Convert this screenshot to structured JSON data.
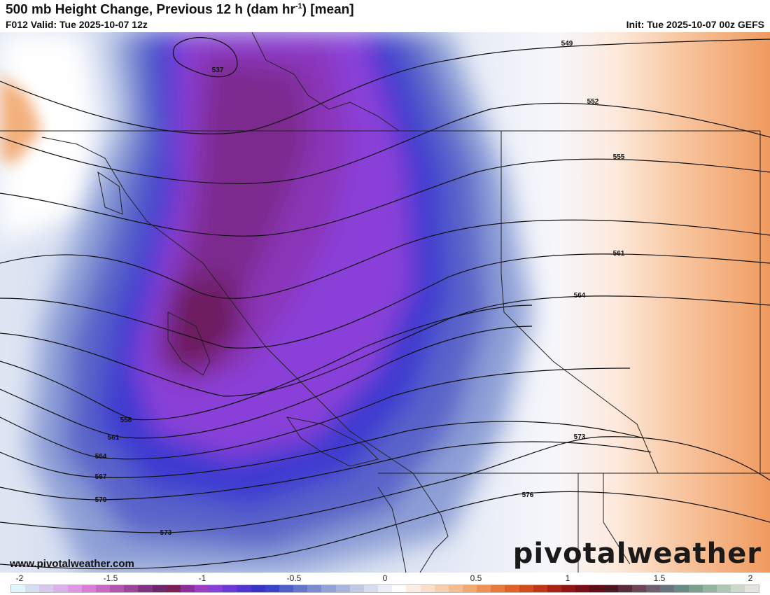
{
  "header": {
    "title": "500 mb Height Change, Previous 12 h (dam hr",
    "title_sup": "-1",
    "title_tail": ") [mean]",
    "valid": "F012 Valid: Tue 2025-10-07 12z",
    "init": "Init: Tue 2025-10-07 00z GEFS"
  },
  "contours": [
    {
      "label": "537"
    },
    {
      "label": "549"
    },
    {
      "label": "552"
    },
    {
      "label": "555"
    },
    {
      "label": "558"
    },
    {
      "label": "561"
    },
    {
      "label": "561"
    },
    {
      "label": "564"
    },
    {
      "label": "564"
    },
    {
      "label": "567"
    },
    {
      "label": "570"
    },
    {
      "label": "573"
    },
    {
      "label": "573"
    },
    {
      "label": "576"
    }
  ],
  "colorbar": {
    "ticks": [
      "-2",
      "-1.5",
      "-1",
      "-0.5",
      "0",
      "0.5",
      "1",
      "1.5",
      "2"
    ],
    "colors": [
      "#dff6fb",
      "#d6ddf3",
      "#d8c8ee",
      "#dbb1ea",
      "#df97e6",
      "#d97dd9",
      "#c969c6",
      "#b156b0",
      "#98459a",
      "#7f3584",
      "#6c276d",
      "#7a1f58",
      "#8e2e9a",
      "#9b3ec4",
      "#8440d8",
      "#6a3ad6",
      "#5035d0",
      "#3a34c6",
      "#3a44c8",
      "#4d5fc6",
      "#6376c9",
      "#7b8bcf",
      "#93a1d7",
      "#aab5df",
      "#c1c9e7",
      "#d7dcef",
      "#eceff7",
      "#ffffff",
      "#fdeee4",
      "#fbdfcb",
      "#f8cfae",
      "#f5bd90",
      "#f2a972",
      "#ee9355",
      "#e87b3a",
      "#e06228",
      "#d24b1c",
      "#c03616",
      "#a82314",
      "#8f1612",
      "#771015",
      "#5f0e18",
      "#4e1620",
      "#5a2b3a",
      "#6b4656",
      "#6f5f6e",
      "#6a7480",
      "#6a8a86",
      "#7aa08e",
      "#94b4a1",
      "#b0c7b6",
      "#ccd8cb",
      "#e5e5e0"
    ]
  },
  "website": "www.pivotalweather.com",
  "logo": "pivotalweather"
}
